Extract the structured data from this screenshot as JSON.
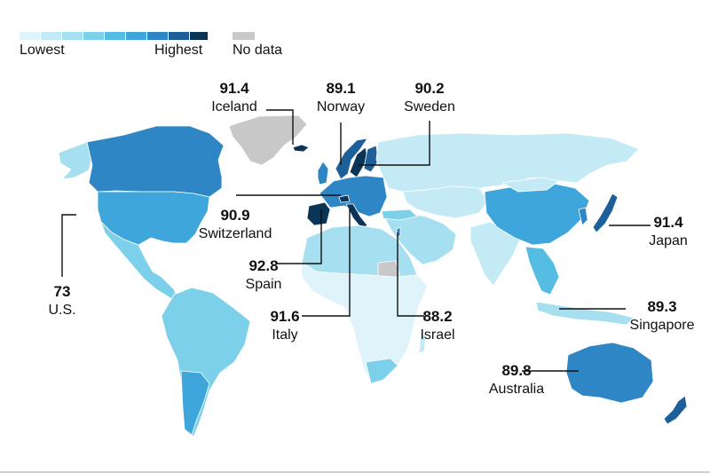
{
  "legend": {
    "low_label": "Lowest",
    "high_label": "Highest",
    "nodata_label": "No data",
    "scale_colors": [
      "#dff4fa",
      "#c4ebf5",
      "#a6e0f0",
      "#7dd0ea",
      "#56bde2",
      "#3ea6da",
      "#2f86c4",
      "#1d5f99",
      "#0b3557"
    ],
    "nodata_color": "#c8c8c8"
  },
  "countries": [
    {
      "key": "iceland",
      "name": "Iceland",
      "value": "91.4"
    },
    {
      "key": "norway",
      "name": "Norway",
      "value": "89.1"
    },
    {
      "key": "sweden",
      "name": "Sweden",
      "value": "90.2"
    },
    {
      "key": "switzerland",
      "name": "Switzerland",
      "value": "90.9"
    },
    {
      "key": "japan",
      "name": "Japan",
      "value": "91.4"
    },
    {
      "key": "spain",
      "name": "Spain",
      "value": "92.8"
    },
    {
      "key": "us",
      "name": "U.S.",
      "value": "73"
    },
    {
      "key": "italy",
      "name": "Italy",
      "value": "91.6"
    },
    {
      "key": "israel",
      "name": "Israel",
      "value": "88.2"
    },
    {
      "key": "singapore",
      "name": "Singapore",
      "value": "89.3"
    },
    {
      "key": "australia",
      "name": "Australia",
      "value": "89.8"
    }
  ]
}
